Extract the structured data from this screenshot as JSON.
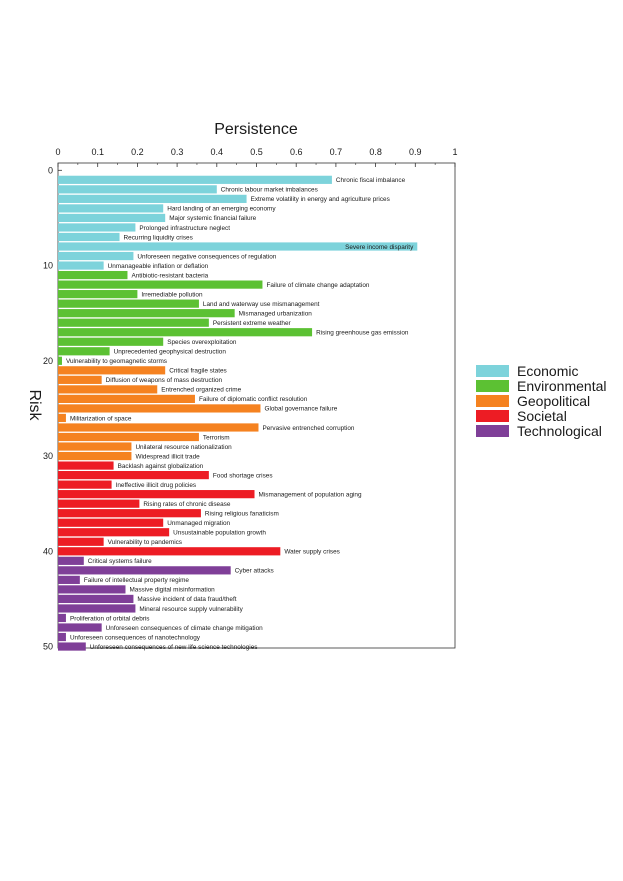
{
  "chart_data": {
    "type": "bar",
    "orientation": "horizontal",
    "xlabel": "Persistence",
    "ylabel": "Risk",
    "xlim": [
      0,
      1
    ],
    "ylim": [
      0,
      51
    ],
    "x_ticks": [
      "0",
      "0.1",
      "0.2",
      "0.3",
      "0.4",
      "0.5",
      "0.6",
      "0.7",
      "0.8",
      "0.9",
      "1"
    ],
    "y_ticks": [
      "0",
      "10",
      "20",
      "30",
      "40",
      "50"
    ],
    "grid": false,
    "legend_position": "right",
    "x_axis_position": "top",
    "legend": [
      {
        "name": "Economic",
        "color": "#7dd3db"
      },
      {
        "name": "Environmental",
        "color": "#5cc133"
      },
      {
        "name": "Geopolitical",
        "color": "#f58220"
      },
      {
        "name": "Societal",
        "color": "#ed1c24"
      },
      {
        "name": "Technological",
        "color": "#7f3f98"
      }
    ],
    "bars": [
      {
        "label": "Chronic fiscal imbalance",
        "value": 0.69,
        "category": "Economic"
      },
      {
        "label": "Chronic labour market imbalances",
        "value": 0.4,
        "category": "Economic"
      },
      {
        "label": "Extreme volatility in energy and agriculture prices",
        "value": 0.475,
        "category": "Economic"
      },
      {
        "label": "Hard landing of an emerging economy",
        "value": 0.265,
        "category": "Economic"
      },
      {
        "label": "Major systemic financial failure",
        "value": 0.27,
        "category": "Economic"
      },
      {
        "label": "Prolonged infrastructure neglect",
        "value": 0.195,
        "category": "Economic"
      },
      {
        "label": "Recurring liquidity crises",
        "value": 0.155,
        "category": "Economic"
      },
      {
        "label": "Severe income disparity",
        "value": 0.905,
        "category": "Economic"
      },
      {
        "label": "Unforeseen negative consequences of regulation",
        "value": 0.19,
        "category": "Economic"
      },
      {
        "label": "Unmanageable inflation or deflation",
        "value": 0.115,
        "category": "Economic"
      },
      {
        "label": "Antibiotic-resistant bacteria",
        "value": 0.175,
        "category": "Environmental"
      },
      {
        "label": "Failure of climate change adaptation",
        "value": 0.515,
        "category": "Environmental"
      },
      {
        "label": "Irremediable pollution",
        "value": 0.2,
        "category": "Environmental"
      },
      {
        "label": "Land and waterway use mismanagement",
        "value": 0.355,
        "category": "Environmental"
      },
      {
        "label": "Mismanaged urbanization",
        "value": 0.445,
        "category": "Environmental"
      },
      {
        "label": "Persistent extreme weather",
        "value": 0.38,
        "category": "Environmental"
      },
      {
        "label": "Rising greenhouse gas emission",
        "value": 0.64,
        "category": "Environmental"
      },
      {
        "label": "Species overexploitation",
        "value": 0.265,
        "category": "Environmental"
      },
      {
        "label": "Unprecedented geophysical destruction",
        "value": 0.13,
        "category": "Environmental"
      },
      {
        "label": "Vulnerability to geomagnetic storms",
        "value": 0.01,
        "category": "Environmental"
      },
      {
        "label": "Critical fragile states",
        "value": 0.27,
        "category": "Geopolitical"
      },
      {
        "label": "Diffusion of weapons of mass destruction",
        "value": 0.11,
        "category": "Geopolitical"
      },
      {
        "label": "Entrenched organized crime",
        "value": 0.25,
        "category": "Geopolitical"
      },
      {
        "label": "Failure of diplomatic conflict resolution",
        "value": 0.345,
        "category": "Geopolitical"
      },
      {
        "label": "Global governance failure",
        "value": 0.51,
        "category": "Geopolitical"
      },
      {
        "label": "Militarization of space",
        "value": 0.02,
        "category": "Geopolitical"
      },
      {
        "label": "Pervasive entrenched corruption",
        "value": 0.505,
        "category": "Geopolitical"
      },
      {
        "label": "Terrorism",
        "value": 0.355,
        "category": "Geopolitical"
      },
      {
        "label": "Unilateral resource nationalization",
        "value": 0.185,
        "category": "Geopolitical"
      },
      {
        "label": "Widespread illicit trade",
        "value": 0.185,
        "category": "Geopolitical"
      },
      {
        "label": "Backlash against globalization",
        "value": 0.14,
        "category": "Societal"
      },
      {
        "label": "Food shortage crises",
        "value": 0.38,
        "category": "Societal"
      },
      {
        "label": "Ineffective illicit drug policies",
        "value": 0.135,
        "category": "Societal"
      },
      {
        "label": "Mismanagement of population aging",
        "value": 0.495,
        "category": "Societal"
      },
      {
        "label": "Rising rates of chronic disease",
        "value": 0.205,
        "category": "Societal"
      },
      {
        "label": "Rising religious fanaticism",
        "value": 0.36,
        "category": "Societal"
      },
      {
        "label": "Unmanaged migration",
        "value": 0.265,
        "category": "Societal"
      },
      {
        "label": "Unsustainable population growth",
        "value": 0.28,
        "category": "Societal"
      },
      {
        "label": "Vulnerability to pandemics",
        "value": 0.115,
        "category": "Societal"
      },
      {
        "label": "Water supply crises",
        "value": 0.56,
        "category": "Societal"
      },
      {
        "label": "Critical systems failure",
        "value": 0.065,
        "category": "Technological"
      },
      {
        "label": "Cyber attacks",
        "value": 0.435,
        "category": "Technological"
      },
      {
        "label": "Failure of intellectual property regime",
        "value": 0.055,
        "category": "Technological"
      },
      {
        "label": "Massive digital misinformation",
        "value": 0.17,
        "category": "Technological"
      },
      {
        "label": "Massive incident of data fraud/theft",
        "value": 0.19,
        "category": "Technological"
      },
      {
        "label": "Mineral resource supply vulnerability",
        "value": 0.195,
        "category": "Technological"
      },
      {
        "label": "Proliferation of orbital debris",
        "value": 0.02,
        "category": "Technological"
      },
      {
        "label": "Unforeseen consequences of climate change mitigation",
        "value": 0.11,
        "category": "Technological"
      },
      {
        "label": "Unforeseen consequences of nanotechnology",
        "value": 0.02,
        "category": "Technological"
      },
      {
        "label": "Unforeseen consequences of new life science technologies",
        "value": 0.07,
        "category": "Technological"
      }
    ],
    "label_inside": [
      "Severe income disparity"
    ]
  }
}
